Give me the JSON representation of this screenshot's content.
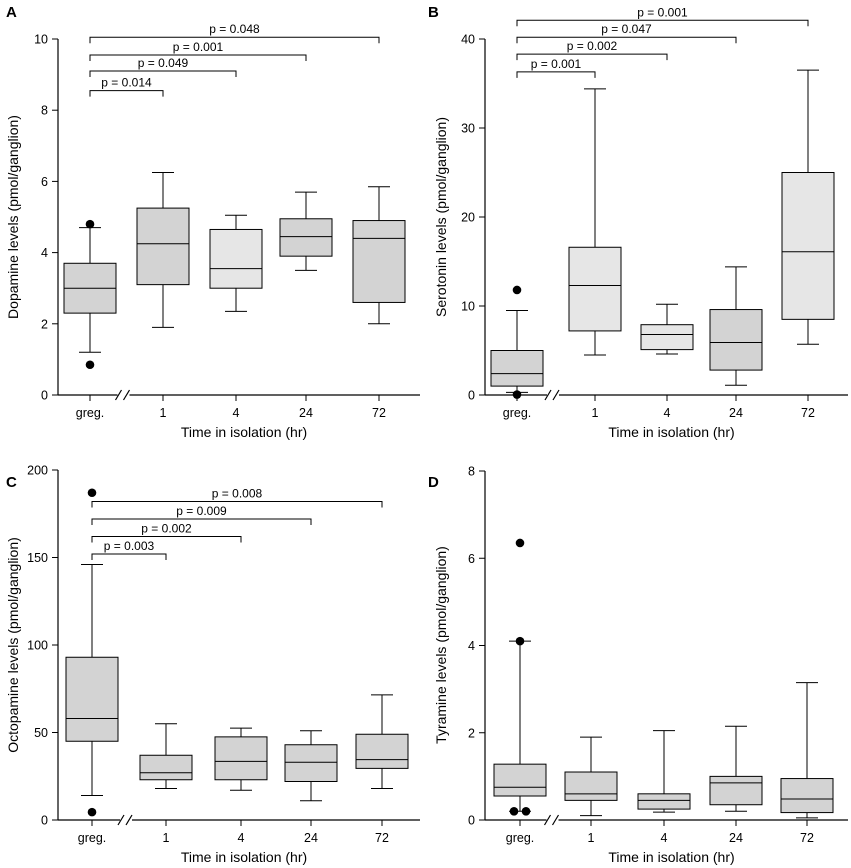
{
  "colors": {
    "box_dark": "#d3d3d3",
    "box_light": "#e6e6e6",
    "outlier": "#000000"
  },
  "chart_data": [
    {
      "panel": "A",
      "type": "boxplot",
      "xlabel": "Time in isolation (hr)",
      "ylabel": "Dopamine levels (pmol/ganglion)",
      "ylim": [
        0,
        10
      ],
      "yticks": [
        "0",
        "2",
        "4",
        "6",
        "8",
        "10"
      ],
      "axis_break": "//",
      "categories": [
        "greg.",
        "1",
        "4",
        "24",
        "72"
      ],
      "boxes": [
        {
          "category": "greg.",
          "whisker_low": 1.2,
          "q1": 2.3,
          "median": 3.0,
          "q3": 3.7,
          "whisker_high": 4.7,
          "outliers": [
            4.8,
            0.85
          ],
          "shade": "dark"
        },
        {
          "category": "1",
          "whisker_low": 1.9,
          "q1": 3.1,
          "median": 4.25,
          "q3": 5.25,
          "whisker_high": 6.25,
          "outliers": [],
          "shade": "dark"
        },
        {
          "category": "4",
          "whisker_low": 2.35,
          "q1": 3.0,
          "median": 3.55,
          "q3": 4.65,
          "whisker_high": 5.05,
          "outliers": [],
          "shade": "light"
        },
        {
          "category": "24",
          "whisker_low": 3.5,
          "q1": 3.9,
          "median": 4.45,
          "q3": 4.95,
          "whisker_high": 5.7,
          "outliers": [],
          "shade": "dark"
        },
        {
          "category": "72",
          "whisker_low": 2.0,
          "q1": 2.6,
          "median": 4.4,
          "q3": 4.9,
          "whisker_high": 5.85,
          "outliers": [],
          "shade": "dark"
        }
      ],
      "comparisons": [
        {
          "from": "greg.",
          "to": "1",
          "label": "p = 0.014",
          "level": 8.55
        },
        {
          "from": "greg.",
          "to": "4",
          "label": "p = 0.049",
          "level": 9.1
        },
        {
          "from": "greg.",
          "to": "24",
          "label": "p = 0.001",
          "level": 9.55
        },
        {
          "from": "greg.",
          "to": "72",
          "label": "p = 0.048",
          "level": 10.05
        }
      ]
    },
    {
      "panel": "B",
      "type": "boxplot",
      "xlabel": "Time in isolation (hr)",
      "ylabel": "Serotonin levels (pmol/ganglion)",
      "ylim": [
        0,
        40
      ],
      "yticks": [
        "0",
        "10",
        "20",
        "30",
        "40"
      ],
      "axis_break": "//",
      "categories": [
        "greg.",
        "1",
        "4",
        "24",
        "72"
      ],
      "boxes": [
        {
          "category": "greg.",
          "whisker_low": 0.3,
          "q1": 1.0,
          "median": 2.4,
          "q3": 5.0,
          "whisker_high": 9.5,
          "outliers": [
            11.8,
            0.05
          ],
          "shade": "dark"
        },
        {
          "category": "1",
          "whisker_low": 4.5,
          "q1": 7.2,
          "median": 12.3,
          "q3": 16.6,
          "whisker_high": 34.4,
          "outliers": [],
          "shade": "light"
        },
        {
          "category": "4",
          "whisker_low": 4.6,
          "q1": 5.1,
          "median": 6.8,
          "q3": 7.9,
          "whisker_high": 10.2,
          "outliers": [],
          "shade": "light"
        },
        {
          "category": "24",
          "whisker_low": 1.1,
          "q1": 2.8,
          "median": 5.9,
          "q3": 9.6,
          "whisker_high": 14.4,
          "outliers": [],
          "shade": "dark"
        },
        {
          "category": "72",
          "whisker_low": 5.7,
          "q1": 8.5,
          "median": 16.1,
          "q3": 25.0,
          "whisker_high": 36.5,
          "outliers": [],
          "shade": "light"
        }
      ],
      "comparisons": [
        {
          "from": "greg.",
          "to": "1",
          "label": "p = 0.001",
          "level": 36.3
        },
        {
          "from": "greg.",
          "to": "4",
          "label": "p = 0.002",
          "level": 38.3
        },
        {
          "from": "greg.",
          "to": "24",
          "label": "p = 0.047",
          "level": 40.2
        },
        {
          "from": "greg.",
          "to": "72",
          "label": "p = 0.001",
          "level": 42.1
        }
      ]
    },
    {
      "panel": "C",
      "type": "boxplot",
      "xlabel": "Time in isolation (hr)",
      "ylabel": "Octopamine levels (pmol/ganglion)",
      "ylim": [
        0,
        200
      ],
      "yticks": [
        "0",
        "50",
        "100",
        "150",
        "200"
      ],
      "axis_break": "//",
      "categories": [
        "greg.",
        "1",
        "4",
        "24",
        "72"
      ],
      "boxes": [
        {
          "category": "greg.",
          "whisker_low": 14,
          "q1": 45,
          "median": 58,
          "q3": 93,
          "whisker_high": 146,
          "outliers": [
            187,
            4.5
          ],
          "shade": "dark"
        },
        {
          "category": "1",
          "whisker_low": 18,
          "q1": 23,
          "median": 27,
          "q3": 37,
          "whisker_high": 55,
          "outliers": [],
          "shade": "dark"
        },
        {
          "category": "4",
          "whisker_low": 17,
          "q1": 23,
          "median": 33.5,
          "q3": 47.5,
          "whisker_high": 52.5,
          "outliers": [],
          "shade": "dark"
        },
        {
          "category": "24",
          "whisker_low": 11,
          "q1": 22,
          "median": 33,
          "q3": 43,
          "whisker_high": 51,
          "outliers": [],
          "shade": "dark"
        },
        {
          "category": "72",
          "whisker_low": 18,
          "q1": 29.5,
          "median": 34.5,
          "q3": 49,
          "whisker_high": 71.5,
          "outliers": [],
          "shade": "dark"
        }
      ],
      "comparisons": [
        {
          "from": "greg.",
          "to": "1",
          "label": "p = 0.003",
          "level": 152
        },
        {
          "from": "greg.",
          "to": "4",
          "label": "p = 0.002",
          "level": 162
        },
        {
          "from": "greg.",
          "to": "24",
          "label": "p = 0.009",
          "level": 172
        },
        {
          "from": "greg.",
          "to": "72",
          "label": "p = 0.008",
          "level": 182
        }
      ]
    },
    {
      "panel": "D",
      "type": "boxplot",
      "xlabel": "Time in isolation (hr)",
      "ylabel": "Tyramine levels (pmol/ganglion)",
      "ylim": [
        0,
        8
      ],
      "yticks": [
        "0",
        "2",
        "4",
        "6",
        "8"
      ],
      "axis_break": "//",
      "categories": [
        "greg.",
        "1",
        "4",
        "24",
        "72"
      ],
      "boxes": [
        {
          "category": "greg.",
          "whisker_low": 0.2,
          "q1": 0.55,
          "median": 0.75,
          "q3": 1.28,
          "whisker_high": 4.1,
          "outliers": [
            6.35,
            4.1,
            0.2,
            0.2
          ],
          "shade": "dark"
        },
        {
          "category": "1",
          "whisker_low": 0.1,
          "q1": 0.45,
          "median": 0.6,
          "q3": 1.1,
          "whisker_high": 1.9,
          "outliers": [],
          "shade": "dark"
        },
        {
          "category": "4",
          "whisker_low": 0.18,
          "q1": 0.25,
          "median": 0.45,
          "q3": 0.6,
          "whisker_high": 2.05,
          "outliers": [],
          "shade": "dark"
        },
        {
          "category": "24",
          "whisker_low": 0.2,
          "q1": 0.35,
          "median": 0.85,
          "q3": 1.0,
          "whisker_high": 2.15,
          "outliers": [],
          "shade": "dark"
        },
        {
          "category": "72",
          "whisker_low": 0.05,
          "q1": 0.17,
          "median": 0.48,
          "q3": 0.95,
          "whisker_high": 3.15,
          "outliers": [],
          "shade": "dark"
        }
      ],
      "comparisons": []
    }
  ]
}
